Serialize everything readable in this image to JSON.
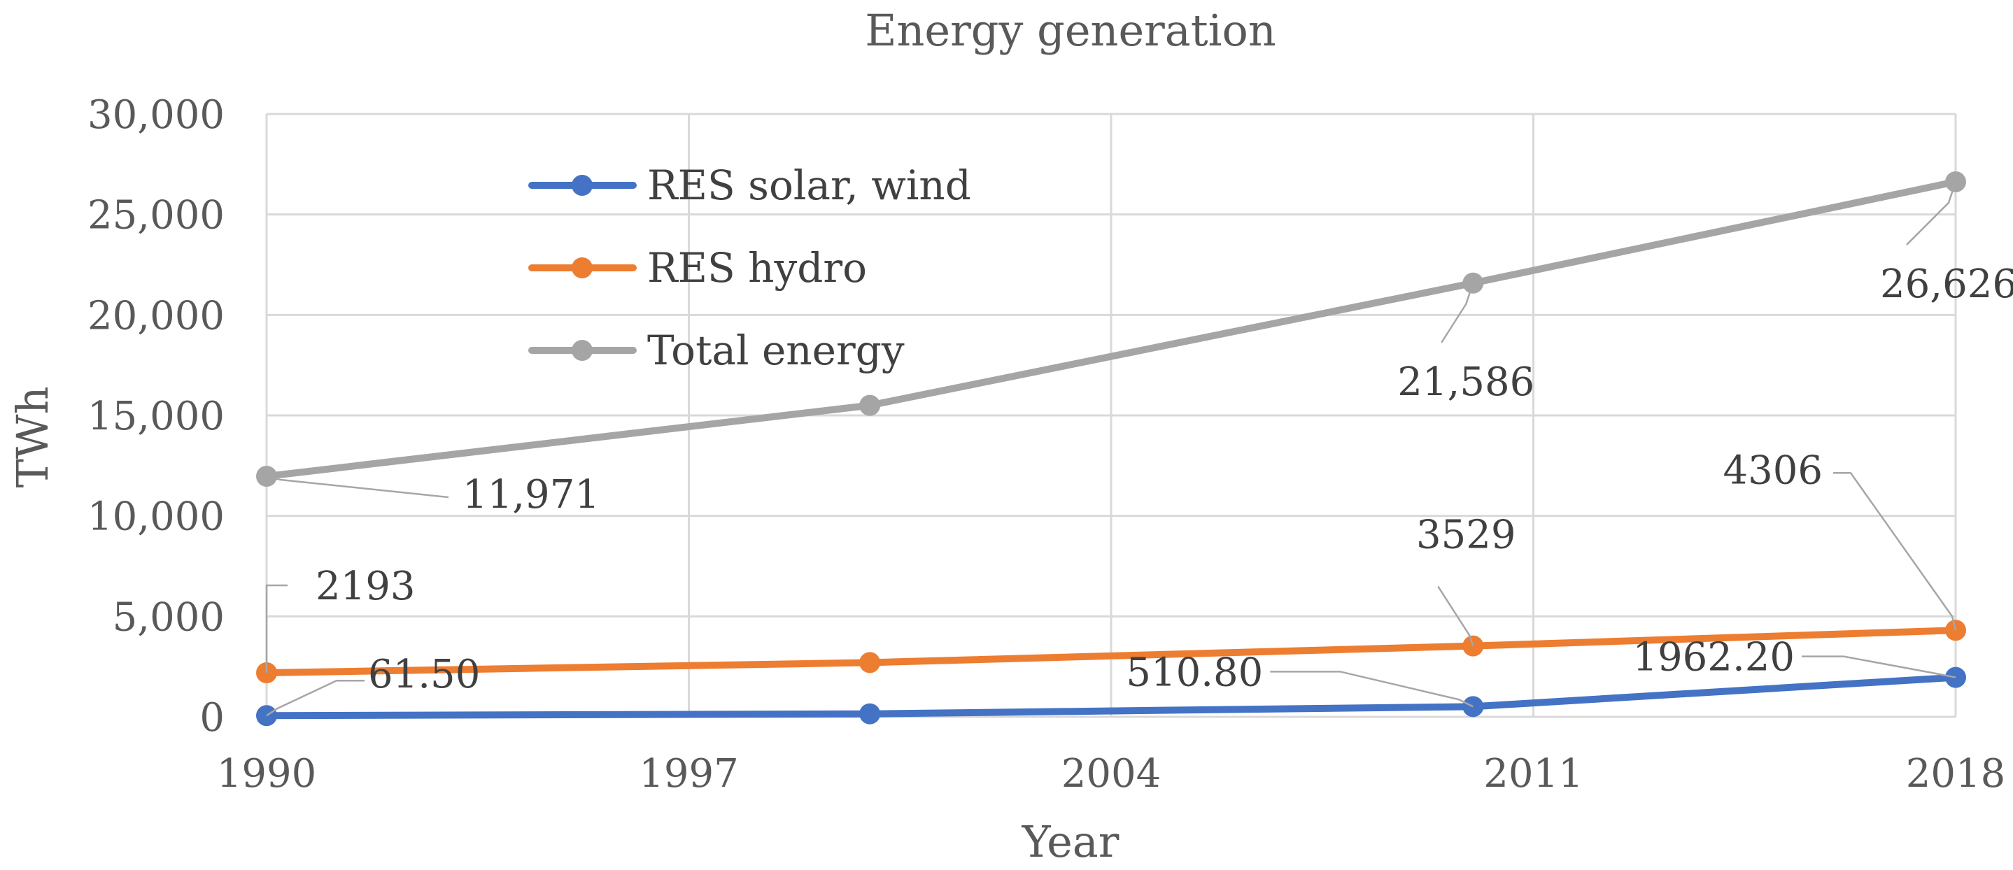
{
  "chart_data": {
    "type": "line",
    "title": "Energy generation",
    "xlabel": "Year",
    "ylabel": "TWh",
    "xlim": [
      1990,
      2018
    ],
    "ylim": [
      0,
      30000
    ],
    "x_ticks": [
      1990,
      1997,
      2004,
      2011,
      2018
    ],
    "x_tick_labels": [
      "1990",
      "1997",
      "2004",
      "2011",
      "2018"
    ],
    "y_ticks": [
      0,
      5000,
      10000,
      15000,
      20000,
      25000,
      30000
    ],
    "y_tick_labels": [
      "0",
      "5,000",
      "10,000",
      "15,000",
      "20,000",
      "25,000",
      "30,000"
    ],
    "grid": true,
    "legend_position": "top-left",
    "series": [
      {
        "name": "RES solar, wind",
        "color": "#4472C4",
        "x": [
          1990,
          2000,
          2010,
          2018
        ],
        "values": [
          61.5,
          150,
          510.8,
          1962.2
        ],
        "labels": [
          "61.50",
          null,
          "510.80",
          "1962.20"
        ]
      },
      {
        "name": "RES hydro",
        "color": "#ED7D31",
        "x": [
          1990,
          2000,
          2010,
          2018
        ],
        "values": [
          2193,
          2700,
          3529,
          4306
        ],
        "labels": [
          "2193",
          null,
          "3529",
          "4306"
        ]
      },
      {
        "name": "Total energy",
        "color": "#A5A5A5",
        "x": [
          1990,
          2000,
          2010,
          2018
        ],
        "values": [
          11971,
          15500,
          21586,
          26626
        ],
        "labels": [
          "11,971",
          null,
          "21,586",
          "26,626"
        ]
      }
    ]
  }
}
